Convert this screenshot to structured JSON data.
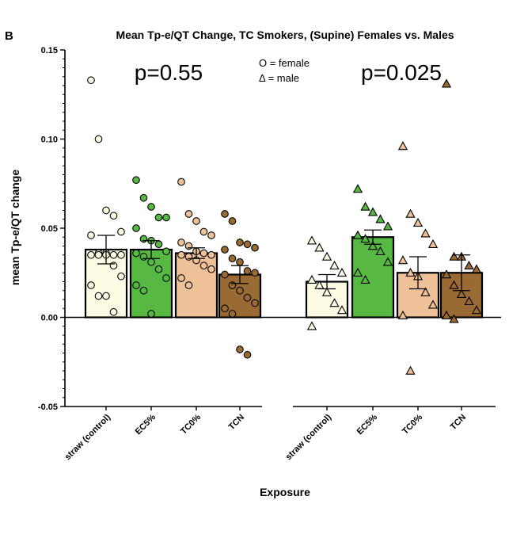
{
  "panel_label": "B",
  "chart_data": {
    "type": "bar",
    "title": "Mean Tp-e/QT Change, TC Smokers, (Supine) Females vs. Males",
    "xlabel": "Exposure",
    "ylabel": "mean Tp-e/QT change",
    "ylim": [
      -0.05,
      0.15
    ],
    "yticks": [
      "-0.05",
      "0.00",
      "0.05",
      "0.10",
      "0.15"
    ],
    "ytick_values": [
      -0.05,
      0.0,
      0.05,
      0.1,
      0.15
    ],
    "grid": false,
    "legend": {
      "placement": "top-center",
      "lines": [
        "O = female",
        "Δ = male"
      ]
    },
    "colors": {
      "straw (control)": "#fdfbe4",
      "EC5%": "#57b844",
      "TC0%": "#eec198",
      "TCN": "#9a6a35"
    },
    "groups": [
      {
        "sex": "female",
        "marker": "circle",
        "p_value": "p=0.55",
        "bars": [
          {
            "category": "straw (control)",
            "mean": 0.038,
            "sem": 0.008,
            "points": [
              0.133,
              0.1,
              0.06,
              0.057,
              0.048,
              0.046,
              0.036,
              0.036,
              0.035,
              0.035,
              0.035,
              0.035,
              0.035,
              0.029,
              0.023,
              0.018,
              0.012,
              0.012,
              0.003
            ]
          },
          {
            "category": "EC5%",
            "mean": 0.038,
            "sem": 0.005,
            "points": [
              0.077,
              0.067,
              0.062,
              0.056,
              0.056,
              0.05,
              0.044,
              0.043,
              0.041,
              0.037,
              0.036,
              0.034,
              0.031,
              0.027,
              0.022,
              0.018,
              0.015,
              0.002
            ]
          },
          {
            "category": "TC0%",
            "mean": 0.036,
            "sem": 0.003,
            "points": [
              0.076,
              0.058,
              0.054,
              0.048,
              0.046,
              0.042,
              0.04,
              0.037,
              0.036,
              0.035,
              0.035,
              0.034,
              0.032,
              0.029,
              0.027,
              0.022,
              0.018
            ]
          },
          {
            "category": "TCN",
            "mean": 0.024,
            "sem": 0.005,
            "points": [
              0.058,
              0.054,
              0.042,
              0.041,
              0.039,
              0.038,
              0.033,
              0.031,
              0.026,
              0.025,
              0.024,
              0.018,
              0.015,
              0.011,
              0.008,
              0.005,
              0.002,
              -0.018,
              -0.021
            ]
          }
        ]
      },
      {
        "sex": "male",
        "marker": "triangle",
        "p_value": "p=0.025",
        "bars": [
          {
            "category": "straw (control)",
            "mean": 0.02,
            "sem": 0.004,
            "points": [
              0.043,
              0.039,
              0.034,
              0.029,
              0.025,
              0.021,
              0.018,
              0.014,
              0.008,
              0.004,
              -0.005
            ]
          },
          {
            "category": "EC5%",
            "mean": 0.045,
            "sem": 0.004,
            "points": [
              0.072,
              0.062,
              0.059,
              0.055,
              0.051,
              0.046,
              0.044,
              0.04,
              0.037,
              0.031,
              0.025,
              0.021
            ]
          },
          {
            "category": "TC0%",
            "mean": 0.025,
            "sem": 0.009,
            "points": [
              0.096,
              0.058,
              0.053,
              0.047,
              0.041,
              0.032,
              0.025,
              0.023,
              0.014,
              0.007,
              0.001,
              -0.03
            ]
          },
          {
            "category": "TCN",
            "mean": 0.025,
            "sem": 0.01,
            "points": [
              0.131,
              0.034,
              0.034,
              0.029,
              0.027,
              0.024,
              0.018,
              0.013,
              0.009,
              0.004,
              0.001,
              -0.001
            ]
          }
        ]
      }
    ]
  }
}
